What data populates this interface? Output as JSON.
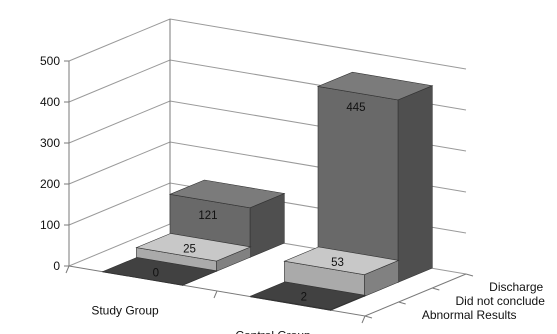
{
  "chart_data": {
    "type": "bar",
    "title": "",
    "xlabel": "",
    "ylabel": "",
    "categories": [
      "Study Group",
      "Control Group"
    ],
    "series": [
      {
        "name": "Abnormal Results",
        "values": [
          0,
          2
        ],
        "color": "#3a3a3a"
      },
      {
        "name": "Did not conclude",
        "values": [
          25,
          53
        ],
        "color": "#b3b3b3"
      },
      {
        "name": "Discharge",
        "values": [
          121,
          445
        ],
        "color": "#6e6e6e"
      }
    ],
    "yticks": [
      "0",
      "100",
      "200",
      "300",
      "400",
      "500"
    ],
    "ylim": [
      0,
      500
    ],
    "grid": true,
    "projection": "3d"
  }
}
